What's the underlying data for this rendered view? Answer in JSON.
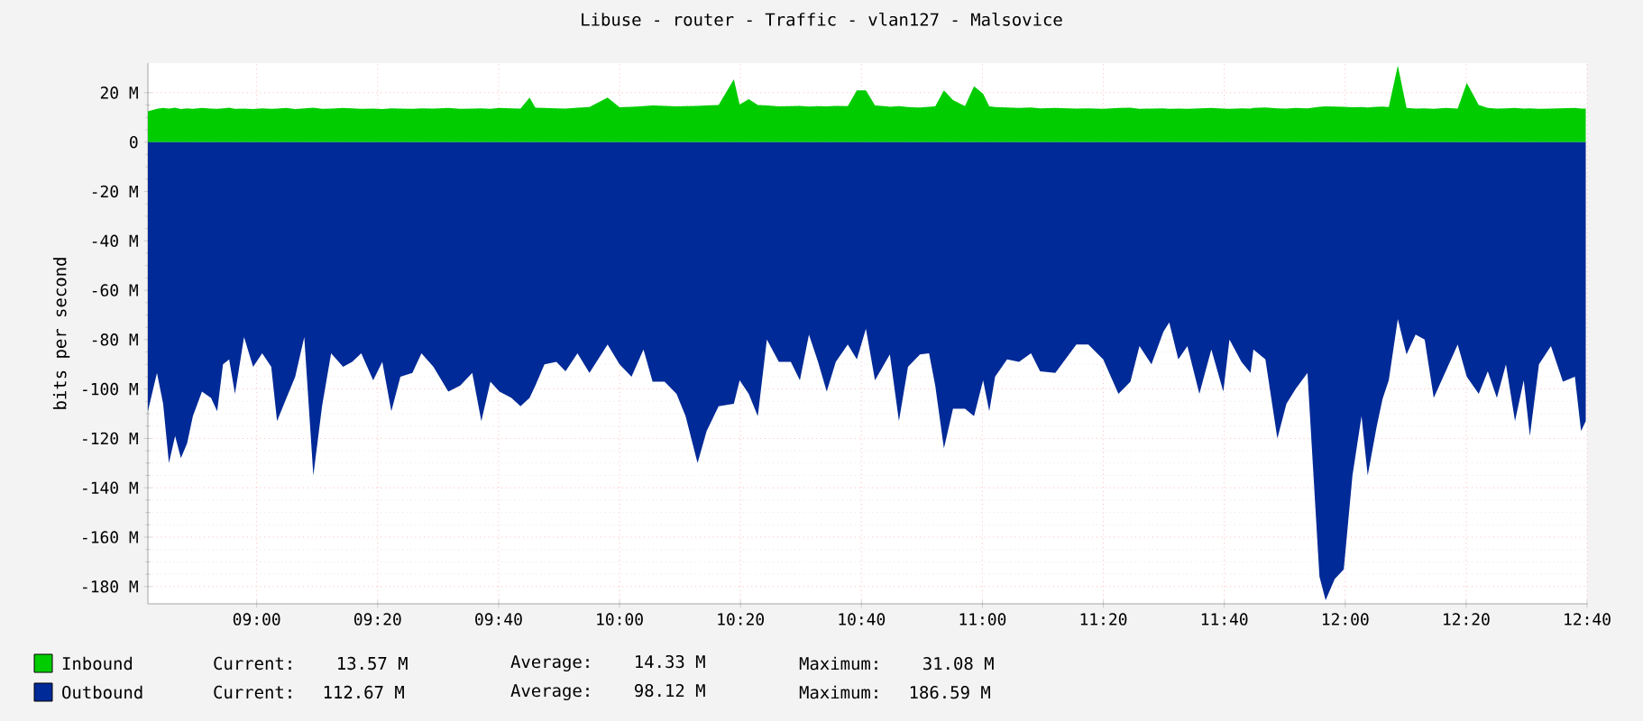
{
  "chart_data": {
    "type": "area",
    "title": "Libuse - router - Traffic - vlan127 - Malsovice",
    "ylabel": "bits per second",
    "x": [
      8.7,
      8.725,
      8.742,
      8.758,
      8.775,
      8.791,
      8.808,
      8.824,
      8.849,
      8.874,
      8.891,
      8.907,
      8.924,
      8.94,
      8.965,
      8.99,
      9.015,
      9.04,
      9.056,
      9.081,
      9.106,
      9.131,
      9.156,
      9.18,
      9.205,
      9.238,
      9.263,
      9.288,
      9.321,
      9.346,
      9.371,
      9.396,
      9.429,
      9.454,
      9.487,
      9.528,
      9.561,
      9.594,
      9.619,
      9.644,
      9.669,
      9.702,
      9.727,
      9.752,
      9.768,
      9.793,
      9.826,
      9.851,
      9.884,
      9.917,
      9.967,
      10.0,
      10.033,
      10.066,
      10.091,
      10.124,
      10.157,
      10.182,
      10.215,
      10.24,
      10.273,
      10.315,
      10.331,
      10.356,
      10.381,
      10.406,
      10.439,
      10.472,
      10.497,
      10.522,
      10.547,
      10.571,
      10.596,
      10.629,
      10.654,
      10.679,
      10.704,
      10.737,
      10.745,
      10.77,
      10.795,
      10.828,
      10.853,
      10.87,
      10.894,
      10.919,
      10.952,
      10.977,
      11.002,
      11.019,
      11.035,
      11.068,
      11.101,
      11.134,
      11.159,
      11.201,
      11.259,
      11.292,
      11.333,
      11.375,
      11.408,
      11.433,
      11.466,
      11.499,
      11.515,
      11.54,
      11.565,
      11.598,
      11.631,
      11.664,
      11.681,
      11.714,
      11.739,
      11.747,
      11.78,
      11.813,
      11.838,
      11.863,
      11.896,
      11.929,
      11.946,
      11.971,
      11.996,
      12.02,
      12.045,
      12.062,
      12.087,
      12.103,
      12.12,
      12.145,
      12.169,
      12.194,
      12.219,
      12.244,
      12.277,
      12.31,
      12.335,
      12.368,
      12.393,
      12.418,
      12.443,
      12.468,
      12.492,
      12.509,
      12.534,
      12.567,
      12.6,
      12.633,
      12.65,
      12.663
    ],
    "series": [
      {
        "name": "Inbound",
        "color": "#00cc00",
        "values": [
          12.5,
          13.5,
          13.8,
          13.6,
          13.9,
          13.4,
          13.7,
          13.5,
          13.8,
          13.6,
          13.5,
          13.7,
          13.9,
          13.5,
          13.6,
          13.4,
          13.7,
          13.5,
          13.6,
          13.8,
          13.4,
          13.7,
          13.9,
          13.5,
          13.6,
          13.8,
          13.7,
          13.5,
          13.6,
          13.4,
          13.7,
          13.6,
          13.5,
          13.7,
          13.6,
          13.8,
          13.5,
          13.6,
          13.7,
          13.5,
          13.8,
          13.7,
          13.6,
          18,
          13.9,
          13.8,
          13.7,
          13.6,
          13.9,
          14.2,
          18,
          14.1,
          14.3,
          14.6,
          14.8,
          14.7,
          14.5,
          14.6,
          14.7,
          14.8,
          15.0,
          25.4,
          15.2,
          17.4,
          15.0,
          14.8,
          14.5,
          14.6,
          14.7,
          14.4,
          14.6,
          14.5,
          14.7,
          14.6,
          21,
          21,
          14.8,
          14.5,
          14.3,
          14.6,
          14.2,
          14.0,
          14.3,
          14.5,
          21,
          17,
          14.6,
          22.6,
          19.6,
          14.5,
          14.2,
          14.0,
          13.8,
          14.0,
          13.7,
          13.8,
          13.6,
          13.7,
          13.5,
          13.8,
          13.9,
          13.5,
          13.6,
          13.7,
          13.5,
          13.6,
          13.5,
          13.7,
          13.8,
          13.6,
          13.5,
          13.7,
          13.6,
          13.8,
          14.0,
          13.7,
          13.6,
          13.8,
          13.7,
          14.3,
          14.5,
          14.4,
          14.3,
          14.1,
          14.2,
          14.0,
          14.3,
          14.4,
          14.2,
          31,
          13.8,
          13.6,
          13.7,
          13.5,
          13.8,
          13.6,
          24,
          15,
          13.8,
          13.6,
          13.7,
          13.8,
          13.6,
          13.7,
          13.5,
          13.6,
          13.7,
          13.8,
          13.6,
          13.6
        ]
      },
      {
        "name": "Outbound",
        "color": "#002a97",
        "values": [
          -109,
          -93.5,
          -106,
          -130,
          -119,
          -128,
          -122,
          -111,
          -101,
          -103.6,
          -109,
          -90,
          -88,
          -102,
          -79,
          -91,
          -85.5,
          -91,
          -113,
          -104,
          -95,
          -79,
          -135,
          -107,
          -85.5,
          -91,
          -89,
          -85.5,
          -96.5,
          -89,
          -109,
          -95,
          -93.5,
          -85.5,
          -91,
          -101,
          -98.6,
          -93.5,
          -113,
          -97,
          -101,
          -103.6,
          -107,
          -103.6,
          -98.6,
          -90,
          -89,
          -92.8,
          -85.5,
          -93.5,
          -82,
          -90,
          -95,
          -84,
          -97,
          -97,
          -102,
          -111,
          -130,
          -117,
          -107,
          -106,
          -96.5,
          -102,
          -111,
          -80,
          -89,
          -89,
          -96.5,
          -78,
          -89,
          -101,
          -89,
          -82,
          -88,
          -75.6,
          -96.5,
          -88,
          -86,
          -113,
          -91,
          -86,
          -85.5,
          -98.6,
          -124,
          -108,
          -108,
          -111,
          -96.5,
          -109,
          -95,
          -88,
          -89,
          -85.5,
          -92.8,
          -93.5,
          -82,
          -82,
          -88,
          -102,
          -97,
          -82.6,
          -90,
          -76.8,
          -73,
          -88,
          -82.6,
          -102,
          -84,
          -101,
          -80,
          -89,
          -93.5,
          -84,
          -88,
          -120,
          -106,
          -100,
          -93.5,
          -176,
          -185.5,
          -177,
          -173,
          -135,
          -111,
          -135,
          -115,
          -104,
          -96.5,
          -71.7,
          -86,
          -78,
          -80,
          -103.6,
          -92.8,
          -82,
          -95,
          -102,
          -92.8,
          -103.6,
          -90,
          -113,
          -96.5,
          -119,
          -90,
          -82.6,
          -97,
          -95,
          -117,
          -113
        ]
      }
    ],
    "xlim": [
      8.7,
      12.6667
    ],
    "ylim": [
      -187,
      32
    ],
    "xticks": [
      {
        "value": 9,
        "label": "09:00"
      },
      {
        "value": 9.3333,
        "label": "09:20"
      },
      {
        "value": 9.6667,
        "label": "09:40"
      },
      {
        "value": 10,
        "label": "10:00"
      },
      {
        "value": 10.3333,
        "label": "10:20"
      },
      {
        "value": 10.6667,
        "label": "10:40"
      },
      {
        "value": 11,
        "label": "11:00"
      },
      {
        "value": 11.3333,
        "label": "11:20"
      },
      {
        "value": 11.6667,
        "label": "11:40"
      },
      {
        "value": 12,
        "label": "12:00"
      },
      {
        "value": 12.3333,
        "label": "12:20"
      },
      {
        "value": 12.6667,
        "label": "12:40"
      }
    ],
    "yticks": [
      {
        "value": 20,
        "label": "20 M"
      },
      0,
      {
        "value": -20,
        "label": "-20 M"
      },
      {
        "value": -40,
        "label": "-40 M"
      },
      {
        "value": -60,
        "label": "-60 M"
      },
      {
        "value": -80,
        "label": "-80 M"
      },
      {
        "value": -100,
        "label": "-100 M"
      },
      {
        "value": -120,
        "label": "-120 M"
      },
      {
        "value": -140,
        "label": "-140 M"
      },
      {
        "value": -160,
        "label": "-160 M"
      },
      {
        "value": -180,
        "label": "-180 M"
      }
    ],
    "grid": true,
    "legend": "bottom",
    "annotations": [
      "Current:   13.57 M",
      "Average:   14.33 M",
      "Maximum:   31.08 M",
      "Current:  112.67 M",
      "Average:   98.12 M",
      "Maximum:  186.59 M"
    ]
  }
}
